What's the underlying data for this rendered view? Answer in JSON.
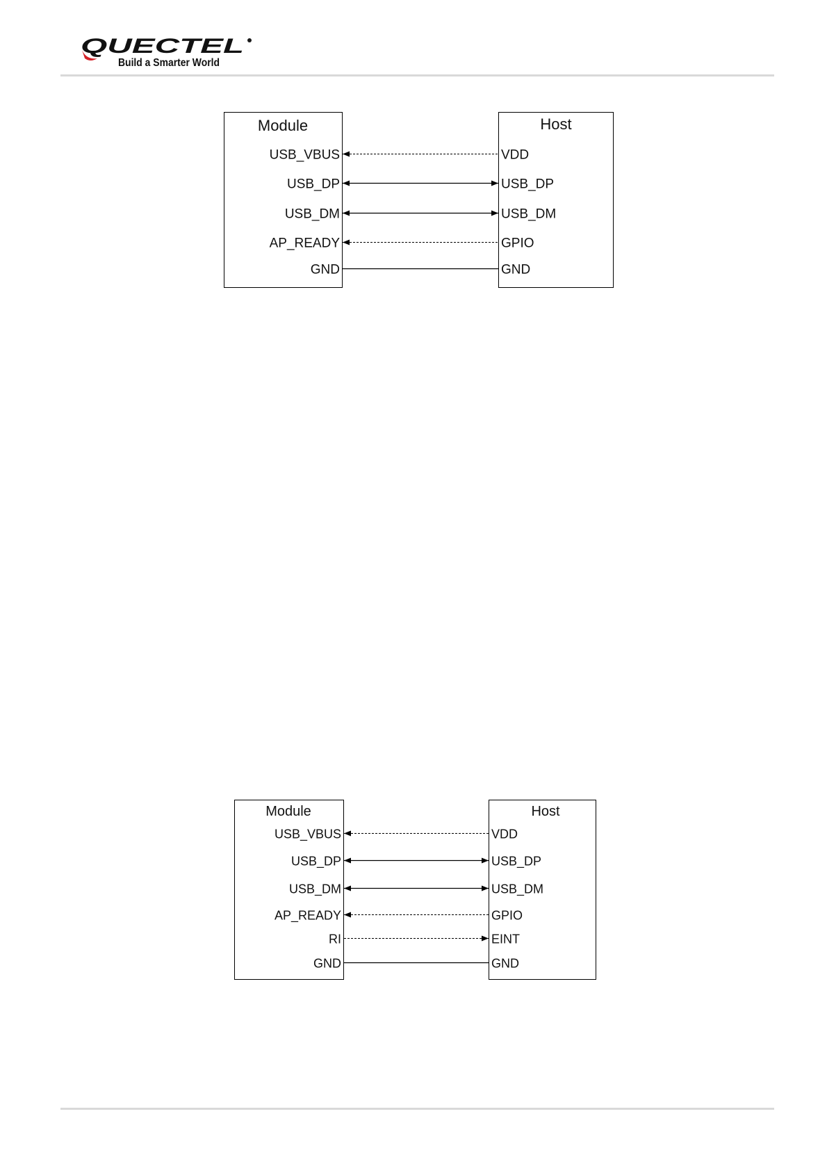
{
  "header": {
    "logo_text": "QUECTEL",
    "logo_tagline": "Build a Smarter World",
    "brand_colors": {
      "logo_text": "#1a1a1a",
      "logo_swoosh": "#d32027",
      "tagline": "#777777",
      "rule": "#d9d9d9"
    }
  },
  "diagrams": [
    {
      "left_title": "Module",
      "right_title": "Host",
      "connections": [
        {
          "left": "USB_VBUS",
          "right": "VDD",
          "style": "dashed",
          "arrow": "left"
        },
        {
          "left": "USB_DP",
          "right": "USB_DP",
          "style": "solid",
          "arrow": "both"
        },
        {
          "left": "USB_DM",
          "right": "USB_DM",
          "style": "solid",
          "arrow": "both"
        },
        {
          "left": "AP_READY",
          "right": "GPIO",
          "style": "dashed",
          "arrow": "left"
        },
        {
          "left": "GND",
          "right": "GND",
          "style": "solid",
          "arrow": "none"
        }
      ]
    },
    {
      "left_title": "Module",
      "right_title": "Host",
      "connections": [
        {
          "left": "USB_VBUS",
          "right": "VDD",
          "style": "dashed",
          "arrow": "left"
        },
        {
          "left": "USB_DP",
          "right": "USB_DP",
          "style": "solid",
          "arrow": "both"
        },
        {
          "left": "USB_DM",
          "right": "USB_DM",
          "style": "solid",
          "arrow": "both"
        },
        {
          "left": "AP_READY",
          "right": "GPIO",
          "style": "dashed",
          "arrow": "left"
        },
        {
          "left": "RI",
          "right": "EINT",
          "style": "dashed",
          "arrow": "right"
        },
        {
          "left": "GND",
          "right": "GND",
          "style": "solid",
          "arrow": "none"
        }
      ]
    }
  ]
}
